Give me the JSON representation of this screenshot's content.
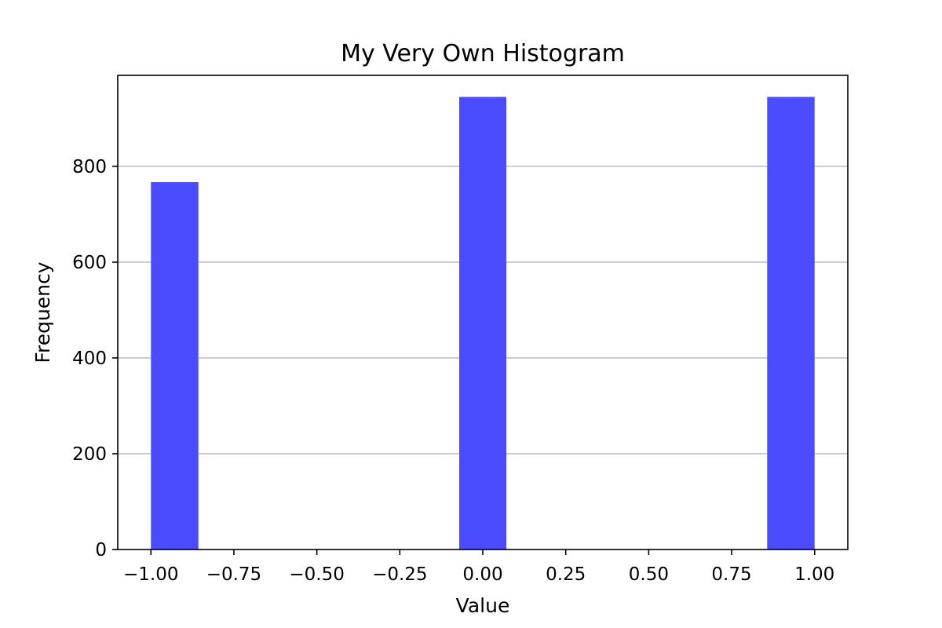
{
  "chart_data": {
    "type": "bar",
    "title": "My Very Own Histogram",
    "xlabel": "Value",
    "ylabel": "Frequency",
    "xlim": [
      -1.1,
      1.1
    ],
    "ylim": [
      0,
      990
    ],
    "bins": [
      {
        "x_start": -1.0,
        "x_end": -0.857,
        "count": 767
      },
      {
        "x_start": -0.071,
        "x_end": 0.071,
        "count": 945
      },
      {
        "x_start": 0.857,
        "x_end": 1.0,
        "count": 945
      }
    ],
    "x_ticks": [
      -1.0,
      -0.75,
      -0.5,
      -0.25,
      0.0,
      0.25,
      0.5,
      0.75,
      1.0
    ],
    "x_tick_labels": [
      "−1.00",
      "−0.75",
      "−0.50",
      "−0.25",
      "0.00",
      "0.25",
      "0.50",
      "0.75",
      "1.00"
    ],
    "y_ticks": [
      0,
      200,
      400,
      600,
      800
    ],
    "y_tick_labels": [
      "0",
      "200",
      "400",
      "600",
      "800"
    ],
    "grid": {
      "y": true,
      "x": false
    },
    "colors": {
      "bar": "#4b4bff",
      "grid": "#c0c0c0",
      "axes": "#000000"
    },
    "legend": "none"
  }
}
